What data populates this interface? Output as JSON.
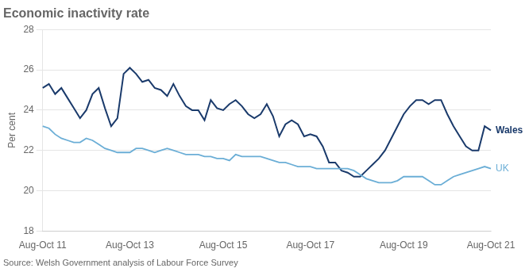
{
  "chart_data": {
    "type": "line",
    "title": "Economic inactivity rate",
    "y_label": "Per cent",
    "source": "Source: Welsh Government analysis of Labour Force Survey",
    "categories": [
      "Aug-Oct 11",
      null,
      null,
      null,
      null,
      null,
      null,
      null,
      null,
      null,
      null,
      null,
      null,
      null,
      "Aug-Oct 13",
      null,
      null,
      null,
      null,
      null,
      null,
      null,
      null,
      null,
      null,
      null,
      null,
      null,
      null,
      "Aug-Oct 15",
      null,
      null,
      null,
      null,
      null,
      null,
      null,
      null,
      null,
      null,
      null,
      null,
      null,
      "Aug-Oct 17",
      null,
      null,
      null,
      null,
      null,
      null,
      null,
      null,
      null,
      null,
      null,
      null,
      null,
      null,
      "Aug-Oct 19",
      null,
      null,
      null,
      null,
      null,
      null,
      null,
      null,
      null,
      null,
      null,
      null,
      null,
      "Aug-Oct 21"
    ],
    "series": [
      {
        "name": "UK",
        "color": "#6baed6",
        "values": [
          23.2,
          23.1,
          22.8,
          22.6,
          22.5,
          22.4,
          22.4,
          22.6,
          22.5,
          22.3,
          22.1,
          22.0,
          21.9,
          21.9,
          21.9,
          22.1,
          22.1,
          22.0,
          21.9,
          22.0,
          22.1,
          22.0,
          21.9,
          21.8,
          21.8,
          21.8,
          21.7,
          21.7,
          21.6,
          21.6,
          21.5,
          21.8,
          21.7,
          21.7,
          21.7,
          21.7,
          21.6,
          21.5,
          21.4,
          21.4,
          21.3,
          21.2,
          21.2,
          21.2,
          21.1,
          21.1,
          21.1,
          21.1,
          21.1,
          21.1,
          21.0,
          20.8,
          20.6,
          20.5,
          20.4,
          20.4,
          20.4,
          20.5,
          20.7,
          20.7,
          20.7,
          20.7,
          20.5,
          20.3,
          20.3,
          20.5,
          20.7,
          20.8,
          20.9,
          21.0,
          21.1,
          21.2,
          21.1
        ]
      },
      {
        "name": "Wales",
        "color": "#1a3a6b",
        "values": [
          25.1,
          25.3,
          24.8,
          25.1,
          24.6,
          24.1,
          23.6,
          24.0,
          24.8,
          25.1,
          24.1,
          23.2,
          23.6,
          25.8,
          26.1,
          25.8,
          25.4,
          25.5,
          25.1,
          25.0,
          24.7,
          25.3,
          24.7,
          24.2,
          24.0,
          24.0,
          23.5,
          24.5,
          24.1,
          24.0,
          24.3,
          24.5,
          24.2,
          23.8,
          23.6,
          23.8,
          24.3,
          23.7,
          22.7,
          23.3,
          23.5,
          23.3,
          22.7,
          22.8,
          22.7,
          22.2,
          21.4,
          21.4,
          21.0,
          20.9,
          20.7,
          20.7,
          21.0,
          21.3,
          21.6,
          22.0,
          22.6,
          23.2,
          23.8,
          24.2,
          24.5,
          24.5,
          24.3,
          24.5,
          24.5,
          23.8,
          23.2,
          22.7,
          22.2,
          22.0,
          22.0,
          23.2,
          23.0
        ]
      }
    ],
    "ylim": [
      18,
      28
    ],
    "yticks": [
      18,
      20,
      22,
      24,
      26,
      28
    ],
    "grid": "y",
    "legend": false
  }
}
